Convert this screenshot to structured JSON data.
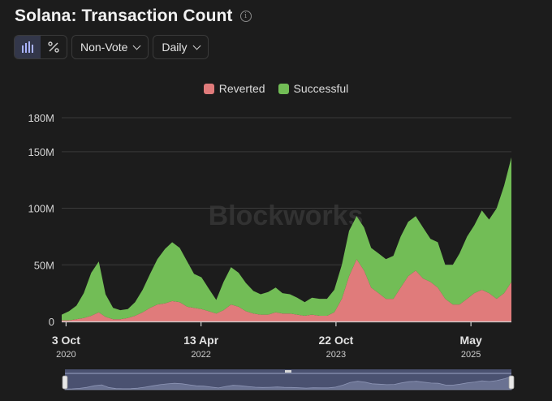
{
  "header": {
    "title": "Solana: Transaction Count"
  },
  "controls": {
    "type_select": "Non-Vote",
    "interval_select": "Daily"
  },
  "watermark": "Blockworks",
  "chart_data": {
    "type": "area",
    "stacked": true,
    "title": "Solana: Transaction Count",
    "legend_position": "top-center",
    "grid": true,
    "ylim": [
      0,
      180
    ],
    "y_unit": "M",
    "y_ticks": [
      "0",
      "50M",
      "100M",
      "150M",
      "180M"
    ],
    "y_tick_values": [
      0,
      50,
      100,
      150,
      180
    ],
    "x_ticks": [
      {
        "label": "3 Oct",
        "sub": "2020",
        "date": "2020-10-03"
      },
      {
        "label": "13 Apr",
        "sub": "2022",
        "date": "2022-04-13"
      },
      {
        "label": "22 Oct",
        "sub": "2023",
        "date": "2023-10-22"
      },
      {
        "label": "May",
        "sub": "2025",
        "date": "2025-05-01"
      }
    ],
    "x": [
      "2020-09-15",
      "2020-10-15",
      "2020-11-15",
      "2020-12-15",
      "2021-01-15",
      "2021-02-15",
      "2021-03-15",
      "2021-04-15",
      "2021-05-15",
      "2021-06-15",
      "2021-07-15",
      "2021-08-15",
      "2021-09-15",
      "2021-10-15",
      "2021-11-15",
      "2021-12-15",
      "2022-01-15",
      "2022-02-15",
      "2022-03-15",
      "2022-04-15",
      "2022-05-15",
      "2022-06-15",
      "2022-07-15",
      "2022-08-15",
      "2022-09-15",
      "2022-10-15",
      "2022-11-15",
      "2022-12-15",
      "2023-01-15",
      "2023-02-15",
      "2023-03-15",
      "2023-04-15",
      "2023-05-15",
      "2023-06-15",
      "2023-07-15",
      "2023-08-15",
      "2023-09-15",
      "2023-10-15",
      "2023-11-15",
      "2023-12-15",
      "2024-01-15",
      "2024-02-15",
      "2024-03-15",
      "2024-04-15",
      "2024-05-15",
      "2024-06-15",
      "2024-07-15",
      "2024-08-15",
      "2024-09-15",
      "2024-10-15",
      "2024-11-15",
      "2024-12-15",
      "2025-01-15",
      "2025-02-15",
      "2025-03-15",
      "2025-04-15",
      "2025-05-15",
      "2025-06-15",
      "2025-07-15",
      "2025-08-15",
      "2025-09-15",
      "2025-10-15"
    ],
    "series": [
      {
        "name": "Reverted",
        "color": "#e07b7b",
        "values": [
          1,
          1,
          2,
          3,
          5,
          8,
          4,
          2,
          2,
          3,
          5,
          8,
          12,
          15,
          16,
          18,
          17,
          13,
          12,
          11,
          9,
          7,
          10,
          15,
          13,
          9,
          7,
          6,
          6,
          8,
          7,
          7,
          6,
          5,
          6,
          5,
          5,
          8,
          20,
          40,
          55,
          45,
          30,
          25,
          20,
          20,
          30,
          40,
          45,
          38,
          35,
          30,
          20,
          15,
          15,
          20,
          25,
          28,
          25,
          20,
          25,
          35
        ]
      },
      {
        "name": "Successful",
        "color": "#72bd56",
        "values": [
          5,
          8,
          12,
          22,
          38,
          45,
          20,
          10,
          8,
          8,
          12,
          20,
          30,
          40,
          48,
          52,
          48,
          40,
          30,
          28,
          20,
          12,
          25,
          33,
          30,
          25,
          20,
          18,
          20,
          22,
          18,
          17,
          15,
          12,
          15,
          15,
          15,
          20,
          30,
          40,
          38,
          38,
          35,
          35,
          35,
          38,
          45,
          48,
          48,
          45,
          38,
          40,
          30,
          35,
          45,
          55,
          60,
          70,
          65,
          80,
          95,
          110
        ]
      }
    ]
  }
}
